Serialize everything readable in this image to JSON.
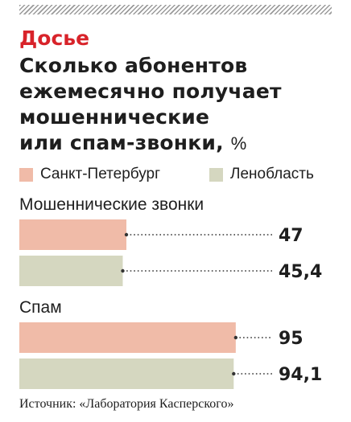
{
  "header": {
    "kicker": "Досье",
    "title_lines": [
      "Сколько абонентов",
      "ежемесячно получает",
      "мошеннические",
      "или спам-звонки,"
    ],
    "unit": "%"
  },
  "colors": {
    "spb": "#f0bba8",
    "lo": "#d5d7c0",
    "accent": "#d8232a"
  },
  "chart_data": {
    "type": "bar",
    "orientation": "horizontal",
    "groups": [
      {
        "name": "Мошеннические звонки",
        "values": [
          {
            "series": "Санкт-Петербург",
            "value": 47,
            "label": "47"
          },
          {
            "series": "Ленобласть",
            "value": 45.4,
            "label": "45,4"
          }
        ]
      },
      {
        "name": "Спам",
        "values": [
          {
            "series": "Санкт-Петербург",
            "value": 95,
            "label": "95"
          },
          {
            "series": "Ленобласть",
            "value": 94.1,
            "label": "94,1"
          }
        ]
      }
    ],
    "series": [
      {
        "name": "Санкт-Петербург",
        "color": "#f0bba8"
      },
      {
        "name": "Ленобласть",
        "color": "#d5d7c0"
      }
    ],
    "ylabel": "%",
    "xlim": [
      0,
      100
    ],
    "grid": false,
    "legend": "top-left"
  },
  "source": "Источник: «Лаборатория Касперского»"
}
